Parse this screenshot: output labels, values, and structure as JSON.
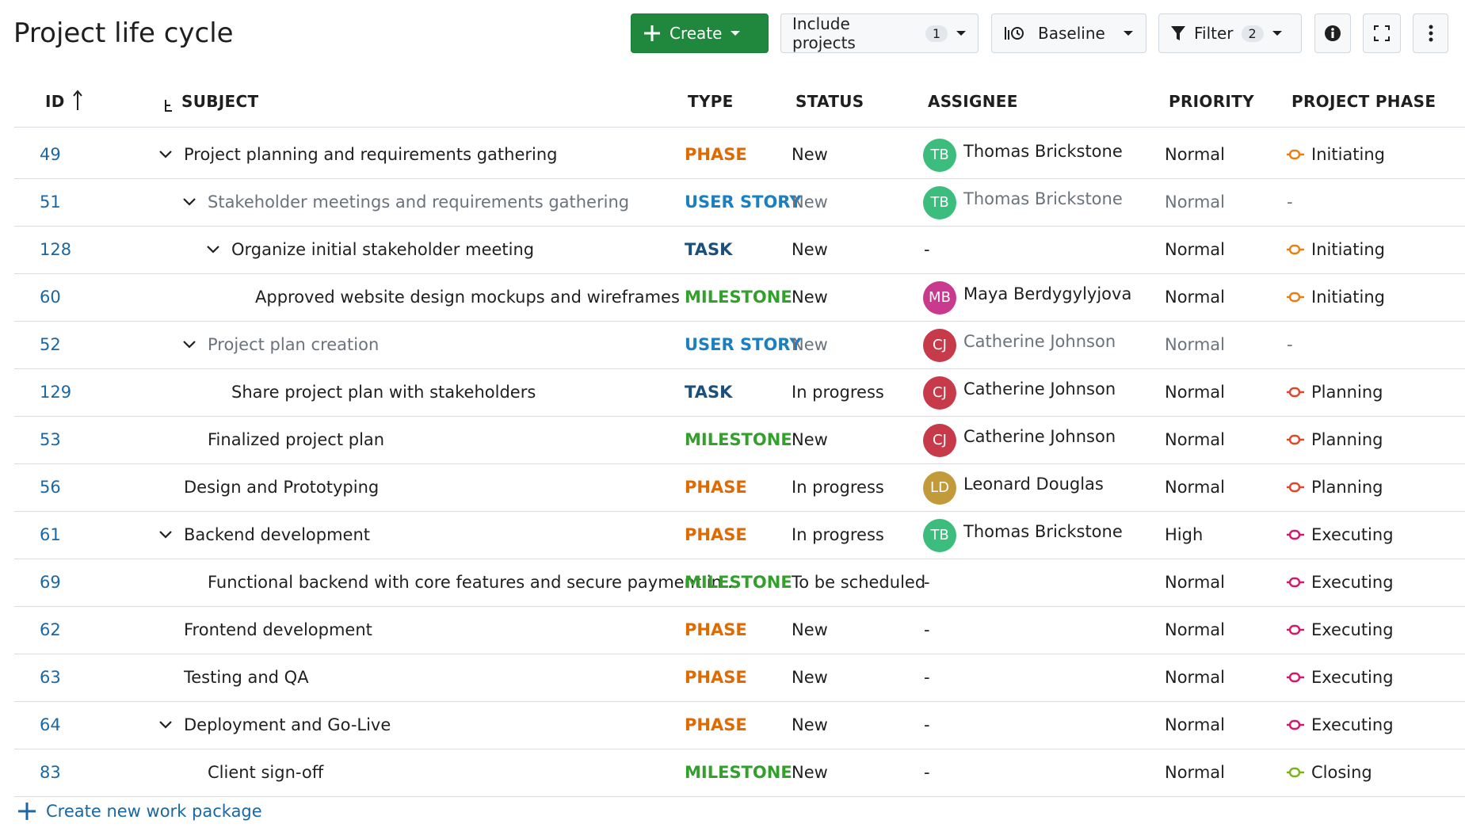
{
  "header": {
    "title": "Project life cycle",
    "toolbar": {
      "create": "Create",
      "include_projects": "Include projects",
      "include_count": "1",
      "baseline": "Baseline",
      "filter": "Filter",
      "filter_count": "2"
    }
  },
  "table": {
    "columns": [
      "ID",
      "SUBJECT",
      "TYPE",
      "STATUS",
      "ASSIGNEE",
      "PRIORITY",
      "PROJECT PHASE"
    ],
    "type_colors": {
      "PHASE": "#e06a00",
      "USER STORY": "#1a80c4",
      "TASK": "#1b4f7c",
      "MILESTONE": "#33a02c"
    },
    "phase_colors": {
      "Initiating": "#ec7d12",
      "Planning": "#e0472a",
      "Executing": "#d4186b",
      "Closing": "#7bb317"
    },
    "rows": [
      {
        "id": "49",
        "subject": "Project planning and requirements gathering",
        "level": 0,
        "has_children": true,
        "muted": false,
        "type": "PHASE",
        "status": "New",
        "assignee": {
          "initials": "TB",
          "name": "Thomas Brickstone",
          "color": "#3dbd7d"
        },
        "priority": "Normal",
        "phase": "Initiating"
      },
      {
        "id": "51",
        "subject": "Stakeholder meetings and requirements gathering",
        "level": 1,
        "has_children": true,
        "muted": true,
        "type": "USER STORY",
        "status": "New",
        "assignee": {
          "initials": "TB",
          "name": "Thomas Brickstone",
          "color": "#3dbd7d"
        },
        "priority": "Normal",
        "phase": "-"
      },
      {
        "id": "128",
        "subject": "Organize initial stakeholder meeting",
        "level": 2,
        "has_children": true,
        "muted": false,
        "type": "TASK",
        "status": "New",
        "assignee": "-",
        "priority": "Normal",
        "phase": "Initiating"
      },
      {
        "id": "60",
        "subject": "Approved website design mockups and wireframes",
        "level": 3,
        "has_children": false,
        "muted": false,
        "type": "MILESTONE",
        "status": "New",
        "assignee": {
          "initials": "MB",
          "name": "Maya Berdygylyjova",
          "color": "#c93a8f"
        },
        "priority": "Normal",
        "phase": "Initiating"
      },
      {
        "id": "52",
        "subject": "Project plan creation",
        "level": 1,
        "has_children": true,
        "muted": true,
        "type": "USER STORY",
        "status": "New",
        "assignee": {
          "initials": "CJ",
          "name": "Catherine Johnson",
          "color": "#c73a4a"
        },
        "priority": "Normal",
        "phase": "-"
      },
      {
        "id": "129",
        "subject": "Share project plan with stakeholders",
        "level": 2,
        "has_children": false,
        "muted": false,
        "type": "TASK",
        "status": "In progress",
        "assignee": {
          "initials": "CJ",
          "name": "Catherine Johnson",
          "color": "#c73a4a"
        },
        "priority": "Normal",
        "phase": "Planning"
      },
      {
        "id": "53",
        "subject": "Finalized project plan",
        "level": 1,
        "has_children": false,
        "muted": false,
        "type": "MILESTONE",
        "status": "New",
        "assignee": {
          "initials": "CJ",
          "name": "Catherine Johnson",
          "color": "#c73a4a"
        },
        "priority": "Normal",
        "phase": "Planning"
      },
      {
        "id": "56",
        "subject": "Design and Prototyping",
        "level": 0,
        "has_children": false,
        "muted": false,
        "type": "PHASE",
        "status": "In progress",
        "assignee": {
          "initials": "LD",
          "name": "Leonard Douglas",
          "color": "#c39a3a"
        },
        "priority": "Normal",
        "phase": "Planning"
      },
      {
        "id": "61",
        "subject": "Backend development",
        "level": 0,
        "has_children": true,
        "muted": false,
        "type": "PHASE",
        "status": "In progress",
        "assignee": {
          "initials": "TB",
          "name": "Thomas Brickstone",
          "color": "#3dbd7d"
        },
        "priority": "High",
        "phase": "Executing"
      },
      {
        "id": "69",
        "subject": "Functional backend with core features and secure payment in…",
        "level": 1,
        "has_children": false,
        "muted": false,
        "type": "MILESTONE",
        "status": "To be scheduled",
        "assignee": "-",
        "priority": "Normal",
        "phase": "Executing"
      },
      {
        "id": "62",
        "subject": "Frontend development",
        "level": 0,
        "has_children": false,
        "muted": false,
        "type": "PHASE",
        "status": "New",
        "assignee": "-",
        "priority": "Normal",
        "phase": "Executing"
      },
      {
        "id": "63",
        "subject": "Testing and QA",
        "level": 0,
        "has_children": false,
        "muted": false,
        "type": "PHASE",
        "status": "New",
        "assignee": "-",
        "priority": "Normal",
        "phase": "Executing"
      },
      {
        "id": "64",
        "subject": "Deployment and Go-Live",
        "level": 0,
        "has_children": true,
        "muted": false,
        "type": "PHASE",
        "status": "New",
        "assignee": "-",
        "priority": "Normal",
        "phase": "Executing"
      },
      {
        "id": "83",
        "subject": "Client sign-off",
        "level": 1,
        "has_children": false,
        "muted": false,
        "type": "MILESTONE",
        "status": "New",
        "assignee": "-",
        "priority": "Normal",
        "phase": "Closing"
      }
    ]
  },
  "footer": {
    "create_link": "Create new work package"
  }
}
